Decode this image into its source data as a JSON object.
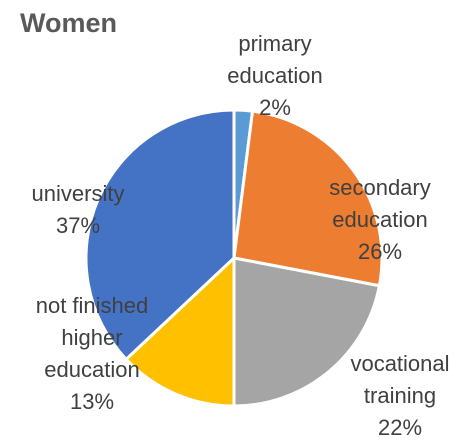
{
  "chart_data": {
    "type": "pie",
    "title": "Women",
    "categories": [
      "primary education",
      "secondary education",
      "vocational training",
      "not finished higher education",
      "university"
    ],
    "values": [
      2,
      26,
      22,
      13,
      37
    ],
    "value_labels": [
      "2%",
      "26%",
      "22%",
      "13%",
      "37%"
    ],
    "colors": [
      "#5b9bd5",
      "#ed7d31",
      "#a5a5a5",
      "#ffc000",
      "#4472c4"
    ]
  }
}
